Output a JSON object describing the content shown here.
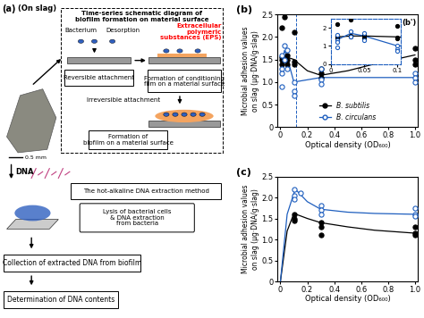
{
  "panel_a": {
    "label": "(a)",
    "subtitle": "(On slag)",
    "schematic_title": [
      "Time-series schematic diagram of",
      "biofilm formation on material surface"
    ],
    "bacterium": "Bacterium",
    "desorption": "Desorption",
    "reversible": "Reversible attachment",
    "eps": [
      "Extracellular",
      "polymeric",
      "substances (EPS)"
    ],
    "conditioning": [
      "Formation of conditioning",
      "film on a material surface"
    ],
    "irreversible": "Irreversible attachment",
    "biofilm": [
      "Formation of",
      "biofilm on a material surface"
    ],
    "scale": "0.5 mm",
    "dna": "DNA",
    "method": "The hot-alkaline DNA extraction method",
    "lysis": [
      "Lysis of bacterial cells",
      "& DNA extraction",
      "from bacteria"
    ],
    "collection": "Collection of extracted DNA from biofilm",
    "determination": "Determination of DNA contents"
  },
  "chart_data": [
    {
      "type": "scatter",
      "label": "(b)",
      "x_label": "Optical density (OD₆₀₀)",
      "y_label": "Microbial adhesion values\non slag (μg·DNA/g·slag)",
      "xlim": [
        -0.02,
        1.02
      ],
      "xticks": [
        0,
        0.2,
        0.4,
        0.6,
        0.8,
        1.0
      ],
      "ylim": [
        0,
        2.5
      ],
      "yticks": [
        0,
        0.5,
        1.0,
        1.5,
        2.0,
        2.5
      ],
      "legend": "lower center",
      "series": [
        {
          "name": "B. subtilis",
          "color": "#000000",
          "marker": "circle",
          "x": [
            0.01,
            0.01,
            0.01,
            0.01,
            0.03,
            0.03,
            0.03,
            0.05,
            0.05,
            0.05,
            0.1,
            0.1,
            0.1,
            0.3,
            0.3,
            0.3,
            1.0,
            1.0,
            1.0
          ],
          "values": [
            2.2,
            1.55,
            1.5,
            1.4,
            2.45,
            1.55,
            1.5,
            1.6,
            1.5,
            1.4,
            2.1,
            1.45,
            1.4,
            1.3,
            1.2,
            1.1,
            1.75,
            1.5,
            1.4
          ],
          "fit": {
            "x": [
              0.01,
              0.03,
              0.05,
              0.1,
              0.2,
              0.3,
              0.5,
              0.7,
              1.0
            ],
            "values": [
              1.5,
              1.55,
              1.55,
              1.5,
              1.25,
              1.15,
              1.25,
              1.4,
              1.6
            ]
          }
        },
        {
          "name": "B. circulans",
          "color": "#1f5fbf",
          "marker": "open_circle",
          "x": [
            0.01,
            0.01,
            0.01,
            0.01,
            0.03,
            0.03,
            0.05,
            0.05,
            0.1,
            0.1,
            0.1,
            0.3,
            0.3,
            0.3,
            1.0,
            1.0,
            1.0
          ],
          "values": [
            1.6,
            1.3,
            1.2,
            0.9,
            1.8,
            1.5,
            1.7,
            1.3,
            1.0,
            0.8,
            0.7,
            1.3,
            1.05,
            0.95,
            1.2,
            1.1,
            1.0
          ],
          "fit": {
            "x": [
              0.01,
              0.03,
              0.05,
              0.1,
              0.2,
              0.3,
              0.5,
              0.7,
              1.0
            ],
            "values": [
              1.35,
              1.7,
              1.55,
              1.0,
              1.05,
              1.1,
              1.1,
              1.1,
              1.1
            ]
          }
        }
      ],
      "inset": {
        "label": "(b')",
        "xlim": [
          0,
          0.105
        ],
        "xticks": [
          0,
          0.05,
          0.1
        ],
        "ylim": [
          0,
          2.5
        ],
        "yticks": [
          0,
          1,
          2
        ]
      }
    },
    {
      "type": "scatter",
      "label": "(c)",
      "x_label": "Optical density (OD₆₀₀)",
      "y_label": "Microbial adhesion values\non slag (μg·DNA/g·slag)",
      "xlim": [
        -0.02,
        1.02
      ],
      "xticks": [
        0,
        0.2,
        0.4,
        0.6,
        0.8,
        1.0
      ],
      "ylim": [
        0,
        2.5
      ],
      "yticks": [
        0,
        0.5,
        1.0,
        1.5,
        2.0,
        2.5
      ],
      "series": [
        {
          "name": "B. subtilis",
          "color": "#000000",
          "marker": "circle",
          "x": [
            0.1,
            0.1,
            0.1,
            0.3,
            0.3,
            0.3,
            1.0,
            1.0,
            1.0
          ],
          "values": [
            1.6,
            1.5,
            1.45,
            1.4,
            1.3,
            1.1,
            1.3,
            1.15,
            1.1
          ],
          "fit": {
            "x": [
              0.0,
              0.05,
              0.1,
              0.2,
              0.3,
              0.5,
              0.7,
              1.0
            ],
            "values": [
              0.0,
              1.2,
              1.62,
              1.5,
              1.4,
              1.3,
              1.22,
              1.15
            ]
          }
        },
        {
          "name": "B. circulans",
          "color": "#1f5fbf",
          "marker": "open_circle",
          "x": [
            0.1,
            0.1,
            0.1,
            0.15,
            0.3,
            0.3,
            0.3,
            1.0,
            1.0,
            1.0
          ],
          "values": [
            2.2,
            2.05,
            1.95,
            2.1,
            1.8,
            1.7,
            1.6,
            1.75,
            1.6,
            1.55
          ],
          "fit": {
            "x": [
              0.0,
              0.05,
              0.11,
              0.2,
              0.3,
              0.5,
              0.7,
              1.0
            ],
            "values": [
              0.0,
              1.6,
              2.2,
              1.9,
              1.72,
              1.65,
              1.62,
              1.6
            ]
          }
        }
      ]
    }
  ]
}
